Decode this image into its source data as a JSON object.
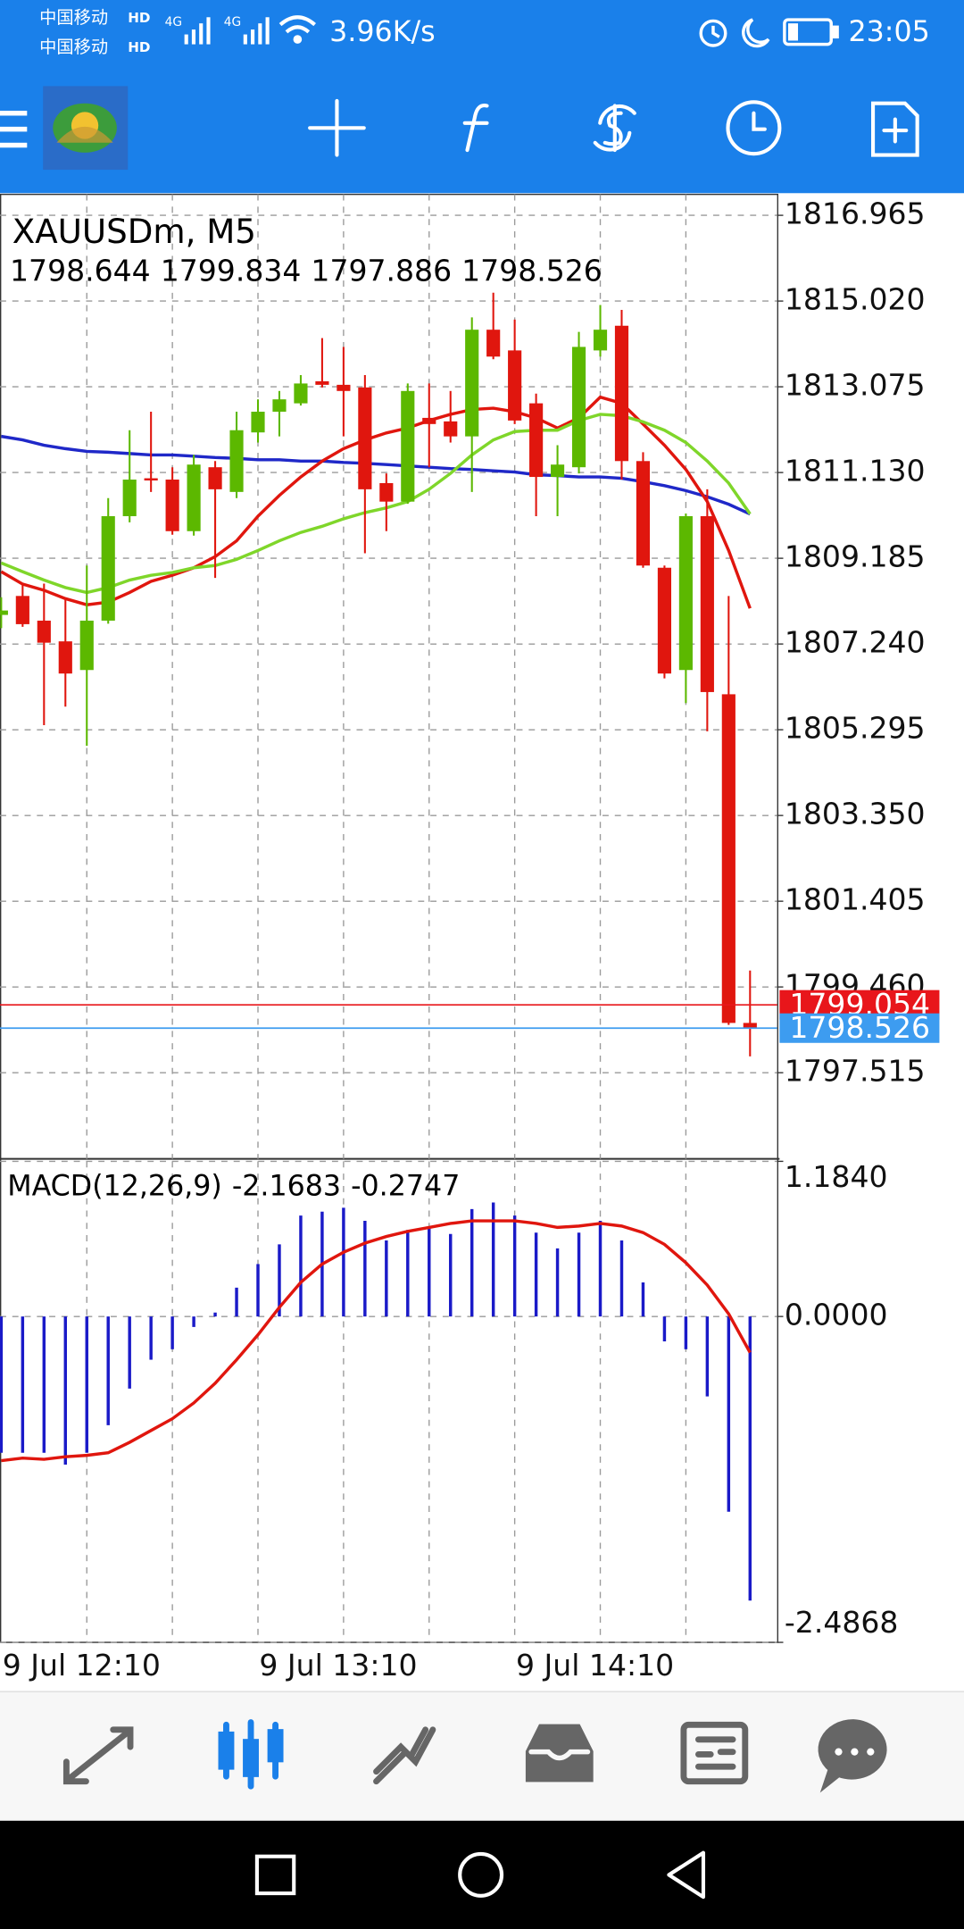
{
  "status_bar": {
    "carrier_1": "中国移动",
    "carrier_2": "中国移动",
    "hd": "HD",
    "network": "4G",
    "speed": "3.96K/s",
    "time": "23:05"
  },
  "chart_data": [
    {
      "type": "candlestick",
      "title": "XAUUSDm, M5",
      "categories": [
        "9 Jul 12:10",
        null,
        null,
        null,
        null,
        null,
        null,
        null,
        null,
        null,
        null,
        null,
        "9 Jul 13:10",
        null,
        null,
        null,
        null,
        null,
        null,
        null,
        null,
        null,
        null,
        null,
        "9 Jul 14:10",
        null,
        null,
        null,
        null,
        null,
        null,
        null,
        null,
        null,
        null,
        null
      ],
      "open": [
        1807.9,
        1808.33,
        1807.77,
        1807.3,
        1806.65,
        1807.77,
        1810.14,
        1811.0,
        1810.97,
        1809.8,
        1811.25,
        1810.69,
        1812.04,
        1812.51,
        1812.7,
        1813.2,
        1813.12,
        1813.06,
        1810.89,
        1810.47,
        1812.37,
        1812.29,
        1811.95,
        1814.37,
        1813.9,
        1812.7,
        1811.03,
        1811.25,
        1813.9,
        1814.46,
        1811.39,
        1808.97,
        1806.65,
        1810.14,
        1806.1,
        1798.644
      ],
      "high": [
        1808.3,
        1808.61,
        1808.61,
        1808.24,
        1809.02,
        1810.55,
        1812.09,
        1812.51,
        1811.25,
        1811.53,
        1811.39,
        1812.51,
        1812.79,
        1812.98,
        1813.34,
        1814.18,
        1813.98,
        1813.34,
        1811.11,
        1813.15,
        1813.15,
        1812.98,
        1814.65,
        1815.21,
        1814.6,
        1812.92,
        1811.75,
        1814.32,
        1814.93,
        1814.82,
        1811.59,
        1809.02,
        1810.2,
        1810.75,
        1808.33,
        1799.834
      ],
      "low": [
        1807.6,
        1807.63,
        1805.4,
        1805.82,
        1804.93,
        1807.7,
        1810.0,
        1810.69,
        1809.72,
        1809.7,
        1808.74,
        1810.55,
        1811.81,
        1811.95,
        1812.65,
        1813.06,
        1811.95,
        1809.3,
        1809.8,
        1810.42,
        1811.25,
        1811.81,
        1810.69,
        1813.7,
        1812.23,
        1810.14,
        1810.14,
        1811.11,
        1813.76,
        1810.97,
        1808.97,
        1806.46,
        1805.9,
        1805.26,
        1798.6,
        1797.886
      ],
      "close": [
        1808.0,
        1807.69,
        1807.27,
        1806.57,
        1807.77,
        1810.14,
        1810.97,
        1810.95,
        1809.8,
        1811.31,
        1810.75,
        1812.09,
        1812.51,
        1812.79,
        1813.15,
        1813.12,
        1812.98,
        1810.75,
        1810.47,
        1812.98,
        1812.23,
        1811.95,
        1814.37,
        1813.76,
        1812.31,
        1811.03,
        1811.31,
        1813.98,
        1814.37,
        1811.39,
        1809.02,
        1806.57,
        1810.14,
        1806.15,
        1798.644,
        1798.526
      ],
      "up_color": "#5cb800",
      "down_color": "#e0160e",
      "series": [
        {
          "color": "#1f28c8",
          "values": [
            1811.95,
            1811.87,
            1811.75,
            1811.67,
            1811.61,
            1811.59,
            1811.56,
            1811.53,
            1811.53,
            1811.5,
            1811.47,
            1811.45,
            1811.42,
            1811.42,
            1811.39,
            1811.39,
            1811.36,
            1811.34,
            1811.31,
            1811.28,
            1811.25,
            1811.22,
            1811.2,
            1811.17,
            1811.14,
            1811.08,
            1811.06,
            1811.03,
            1811.03,
            1811.0,
            1810.92,
            1810.83,
            1810.72,
            1810.58,
            1810.41,
            1810.19
          ]
        },
        {
          "color": "#e0160e",
          "values": [
            1808.88,
            1808.6,
            1808.46,
            1808.27,
            1808.13,
            1808.19,
            1808.41,
            1808.66,
            1808.8,
            1808.97,
            1809.22,
            1809.58,
            1810.14,
            1810.61,
            1811.03,
            1811.39,
            1811.67,
            1811.87,
            1812.03,
            1812.14,
            1812.31,
            1812.45,
            1812.56,
            1812.59,
            1812.51,
            1812.37,
            1812.14,
            1812.37,
            1812.84,
            1812.7,
            1812.23,
            1811.75,
            1811.2,
            1810.47,
            1809.36,
            1808.05
          ]
        },
        {
          "color": "#7fd62a",
          "values": [
            1809.08,
            1808.88,
            1808.69,
            1808.52,
            1808.41,
            1808.52,
            1808.69,
            1808.8,
            1808.86,
            1808.97,
            1809.02,
            1809.16,
            1809.36,
            1809.58,
            1809.77,
            1809.91,
            1810.08,
            1810.22,
            1810.33,
            1810.47,
            1810.75,
            1811.11,
            1811.53,
            1811.87,
            1812.06,
            1812.09,
            1812.09,
            1812.31,
            1812.45,
            1812.42,
            1812.28,
            1812.09,
            1811.81,
            1811.39,
            1810.89,
            1810.19
          ]
        }
      ],
      "price_lines": [
        {
          "value": 1799.054,
          "color": "#e8161b"
        },
        {
          "value": 1798.526,
          "color": "#3d9cf0"
        }
      ],
      "ylim": [
        1795.56,
        1817.44
      ],
      "yticks": [
        1816.965,
        {
          "value": 1815.02,
          "label": "1815.020"
        },
        1813.075,
        {
          "value": 1811.13,
          "label": "1811.130"
        },
        1809.185,
        {
          "value": 1807.24,
          "label": "1807.240"
        },
        1805.295,
        {
          "value": 1803.35,
          "label": "1803.350"
        },
        1801.405,
        {
          "value": 1799.46,
          "label": "1799.460"
        },
        1797.515
      ],
      "grid": true
    },
    {
      "type": "macd",
      "title": "MACD(12,26,9)",
      "series": [
        {
          "type": "bar",
          "color": "#1a1ac8",
          "values": [
            -1.04,
            -1.04,
            -1.04,
            -1.13,
            -1.04,
            -0.83,
            -0.55,
            -0.33,
            -0.25,
            -0.08,
            0.03,
            0.22,
            0.4,
            0.55,
            0.77,
            0.8,
            0.83,
            0.73,
            0.58,
            0.66,
            0.68,
            0.63,
            0.82,
            0.87,
            0.77,
            0.64,
            0.52,
            0.64,
            0.73,
            0.58,
            0.26,
            -0.19,
            -0.25,
            -0.61,
            -1.49,
            -2.1683
          ]
        },
        {
          "type": "line",
          "color": "#e0160e",
          "values": [
            -1.1,
            -1.08,
            -1.09,
            -1.07,
            -1.06,
            -1.04,
            -0.96,
            -0.87,
            -0.78,
            -0.66,
            -0.51,
            -0.33,
            -0.14,
            0.07,
            0.26,
            0.4,
            0.49,
            0.56,
            0.61,
            0.65,
            0.68,
            0.71,
            0.73,
            0.73,
            0.73,
            0.71,
            0.68,
            0.69,
            0.71,
            0.69,
            0.64,
            0.55,
            0.41,
            0.24,
            0.02,
            -0.2747
          ]
        }
      ],
      "ylim": [
        -2.4868,
        1.184
      ],
      "yticks": [
        {
          "value": 1.184,
          "label": "1.1840"
        },
        {
          "value": 0,
          "label": "0.0000"
        },
        -2.4868
      ],
      "grid": true
    }
  ]
}
